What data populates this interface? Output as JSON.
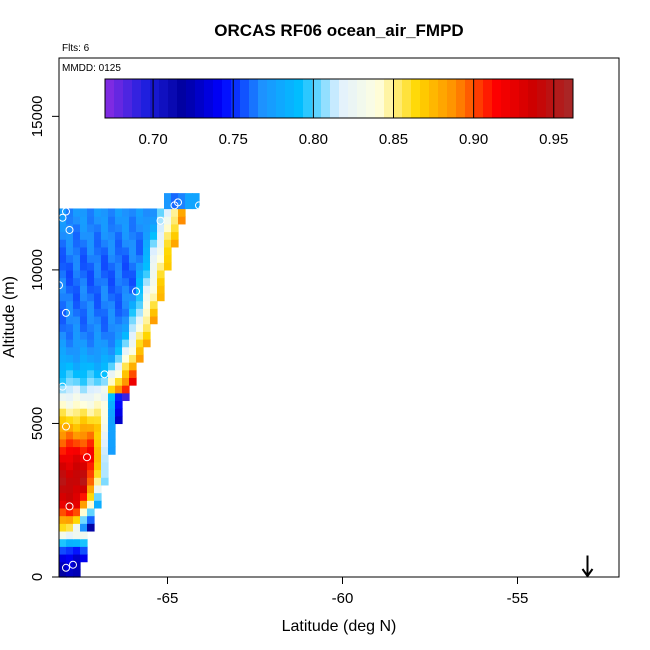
{
  "chart_data": {
    "type": "heatmap",
    "title": "ORCAS RF06 ocean_air_FMPD",
    "flights_note": "Flts: 6",
    "date_note": "MMDD: 0125",
    "xlabel": "Latitude (deg N)",
    "ylabel": "Altitude (m)",
    "xlim": [
      -68.1,
      -52.1
    ],
    "ylim": [
      0,
      16900
    ],
    "x_ticks": [
      -65,
      -60,
      -55
    ],
    "x_tick_labels": [
      "-65",
      "-60",
      "-55"
    ],
    "y_ticks": [
      0,
      5000,
      10000,
      15000
    ],
    "y_tick_labels": [
      "0",
      "5000",
      "10000",
      "15000"
    ],
    "colorbar": {
      "range": [
        0.67,
        0.962
      ],
      "ticks": [
        0.7,
        0.75,
        0.8,
        0.85,
        0.9,
        0.95
      ],
      "tick_labels": [
        "0.70",
        "0.75",
        "0.80",
        "0.85",
        "0.90",
        "0.95"
      ],
      "colors": [
        "#8a2be2",
        "#2020e0",
        "#0000a0",
        "#0000ff",
        "#1e90ff",
        "#00bfff",
        "#e0f0ff",
        "#ffffe0",
        "#ffd700",
        "#ff8c00",
        "#ff0000",
        "#cc0000",
        "#a52a2a"
      ]
    },
    "region": {
      "lat_west": -68.1,
      "lat_east_top": -64.9,
      "alt_top": 11900,
      "alt_notch_top": 12300,
      "notch_lat": [
        -65.1,
        -64.1
      ],
      "boundary_profile": [
        {
          "alt": 0,
          "lat": -67.6
        },
        {
          "alt": 1500,
          "lat": -67.3
        },
        {
          "alt": 3000,
          "lat": -66.9
        },
        {
          "alt": 4500,
          "lat": -66.6
        },
        {
          "alt": 6000,
          "lat": -66.2
        },
        {
          "alt": 7500,
          "lat": -65.7
        },
        {
          "alt": 9000,
          "lat": -65.3
        },
        {
          "alt": 10500,
          "lat": -65.0
        },
        {
          "alt": 11900,
          "lat": -64.6
        }
      ],
      "value_profile": [
        {
          "alt": 0,
          "value": 0.72
        },
        {
          "alt": 800,
          "value": 0.74
        },
        {
          "alt": 1600,
          "value": 0.86
        },
        {
          "alt": 2400,
          "value": 0.93
        },
        {
          "alt": 3200,
          "value": 0.945
        },
        {
          "alt": 4000,
          "value": 0.92
        },
        {
          "alt": 4800,
          "value": 0.88
        },
        {
          "alt": 5600,
          "value": 0.84
        },
        {
          "alt": 6400,
          "value": 0.8
        },
        {
          "alt": 7200,
          "value": 0.775
        },
        {
          "alt": 8000,
          "value": 0.765
        },
        {
          "alt": 10000,
          "value": 0.76
        },
        {
          "alt": 11900,
          "value": 0.77
        }
      ]
    },
    "observations": [
      {
        "lat": -67.9,
        "alt": 300
      },
      {
        "lat": -67.7,
        "alt": 400
      },
      {
        "lat": -67.8,
        "alt": 2300
      },
      {
        "lat": -67.3,
        "alt": 3900
      },
      {
        "lat": -67.9,
        "alt": 4900
      },
      {
        "lat": -68.0,
        "alt": 6200
      },
      {
        "lat": -66.8,
        "alt": 6600
      },
      {
        "lat": -67.9,
        "alt": 8600
      },
      {
        "lat": -68.1,
        "alt": 9500
      },
      {
        "lat": -65.9,
        "alt": 9300
      },
      {
        "lat": -67.8,
        "alt": 11300
      },
      {
        "lat": -68.0,
        "alt": 11700
      },
      {
        "lat": -67.9,
        "alt": 11900
      },
      {
        "lat": -65.2,
        "alt": 11600
      },
      {
        "lat": -64.8,
        "alt": 12100
      },
      {
        "lat": -64.7,
        "alt": 12200
      },
      {
        "lat": -64.1,
        "alt": 12100
      },
      {
        "lat": -64.0,
        "alt": 12000
      }
    ],
    "marker": {
      "type": "arrow",
      "lat": -53.0,
      "alt_from": 700,
      "alt_to": 0
    }
  }
}
